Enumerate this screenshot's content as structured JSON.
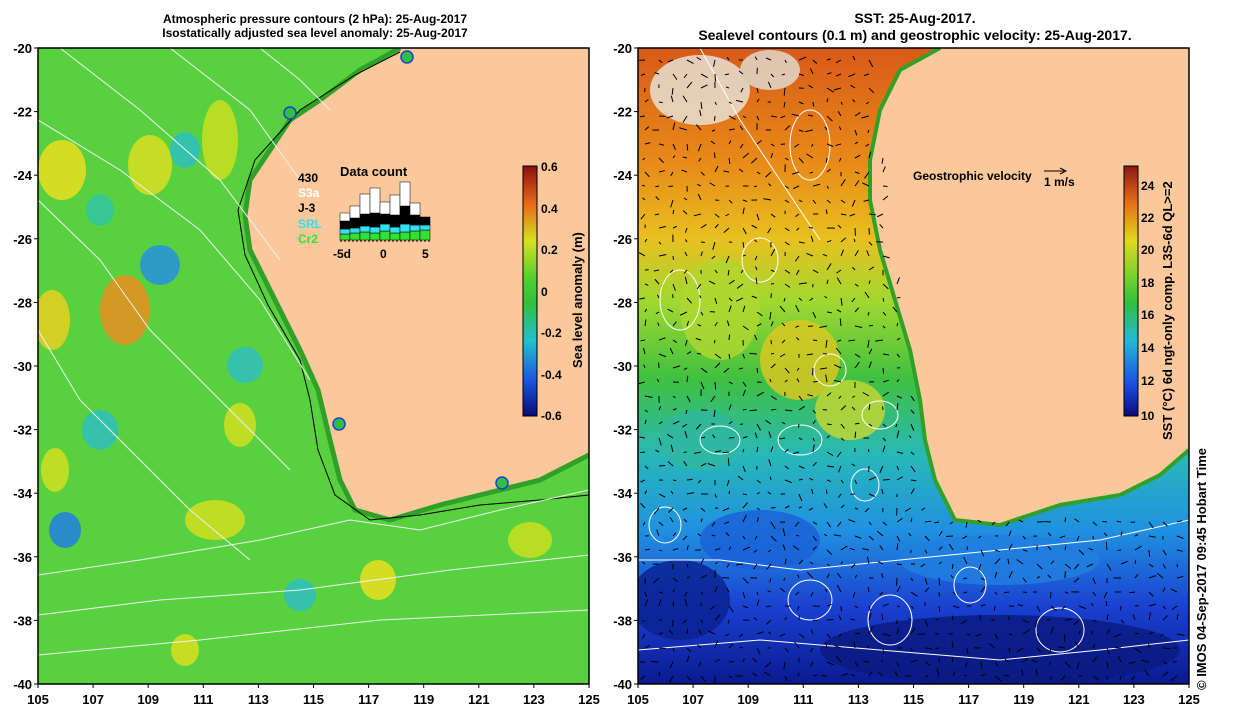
{
  "left_panel": {
    "title_line1": "Atmospheric pressure contours (2 hPa): 25-Aug-2017",
    "title_line2": "Isostatically adjusted sea level anomaly: 25-Aug-2017",
    "colorbar_label": "Sea level anomaly (m)",
    "colorbar_ticks": [
      "0.6",
      "0.4",
      "0.2",
      "0",
      "-0.2",
      "-0.4",
      "-0.6"
    ],
    "data_count": {
      "title": "Data count",
      "total": "430",
      "legend": [
        {
          "name": "S3a",
          "color": "#ffffff"
        },
        {
          "name": "J-3",
          "color": "#000000"
        },
        {
          "name": "SRL",
          "color": "#33e0f0"
        },
        {
          "name": "Cr2",
          "color": "#33e033"
        }
      ],
      "x_ticks": [
        "-5d",
        "0",
        "5"
      ]
    }
  },
  "right_panel": {
    "title_line1": "SST: 25-Aug-2017.",
    "title_line2": "Sealevel contours (0.1 m) and geostrophic velocity: 25-Aug-2017.",
    "velocity_label": "Geostrophic velocity",
    "velocity_scale": "1 m/s",
    "colorbar_label": "SST (°C) 6d ngt-only comp. L3S-6d QL>=2",
    "colorbar_ticks": [
      "24",
      "22",
      "20",
      "18",
      "16",
      "14",
      "12",
      "10"
    ]
  },
  "axes": {
    "y_ticks": [
      "-20",
      "-22",
      "-24",
      "-26",
      "-28",
      "-30",
      "-32",
      "-34",
      "-36",
      "-38",
      "-40"
    ],
    "x_ticks": [
      "105",
      "107",
      "109",
      "111",
      "113",
      "115",
      "117",
      "119",
      "121",
      "123",
      "125"
    ]
  },
  "credit": "© IMOS 04-Sep-2017 09:45 Hobart Time",
  "colors": {
    "land": "#fac89a",
    "sea_green": "#55d040",
    "sst_warm": "#e8701a",
    "sst_cold": "#0a2a9a"
  }
}
